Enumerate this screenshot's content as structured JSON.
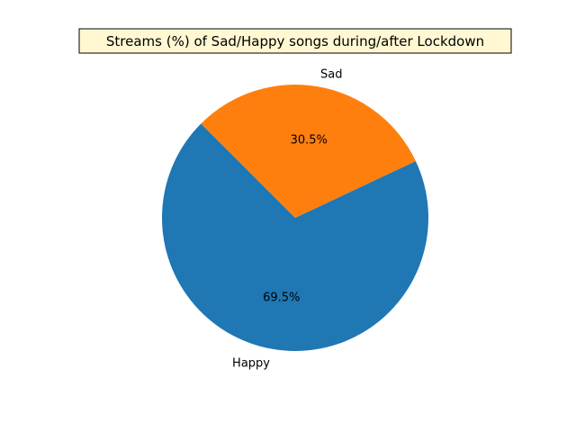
{
  "chart_data": {
    "type": "pie",
    "title": "Streams (%) of Sad/Happy songs during/after Lockdown",
    "slices": [
      {
        "label": "Happy",
        "value": 69.5,
        "pct_label": "69.5%",
        "color": "#1f77b4"
      },
      {
        "label": "Sad",
        "value": 30.5,
        "pct_label": "30.5%",
        "color": "#ff7f0e"
      }
    ],
    "start_angle_deg": 135,
    "direction": "counterclockwise"
  }
}
